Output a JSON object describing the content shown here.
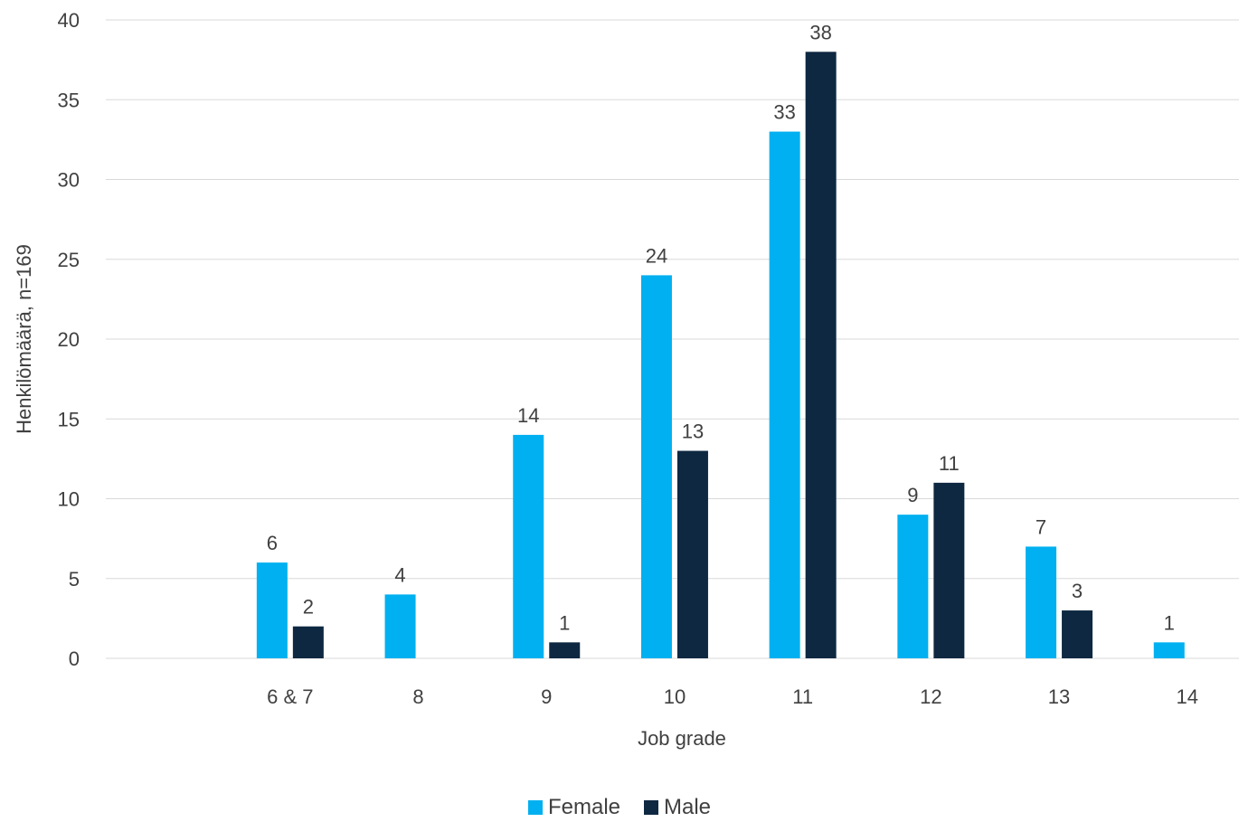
{
  "chart_data": {
    "type": "bar",
    "categories": [
      "6 & 7",
      "8",
      "9",
      "10",
      "11",
      "12",
      "13",
      "14"
    ],
    "series": [
      {
        "name": "Female",
        "color": "#00B0F0",
        "values": [
          6,
          4,
          14,
          24,
          33,
          9,
          7,
          1
        ]
      },
      {
        "name": "Male",
        "color": "#0E2841",
        "values": [
          2,
          null,
          1,
          13,
          38,
          11,
          3,
          null
        ]
      }
    ],
    "xlabel": "Job grade",
    "ylabel": "Henkilömäärä, n=169",
    "ylim": [
      0,
      40
    ],
    "yticks": [
      0,
      5,
      10,
      15,
      20,
      25,
      30,
      35,
      40
    ],
    "grid": true,
    "legend_position": "bottom"
  }
}
